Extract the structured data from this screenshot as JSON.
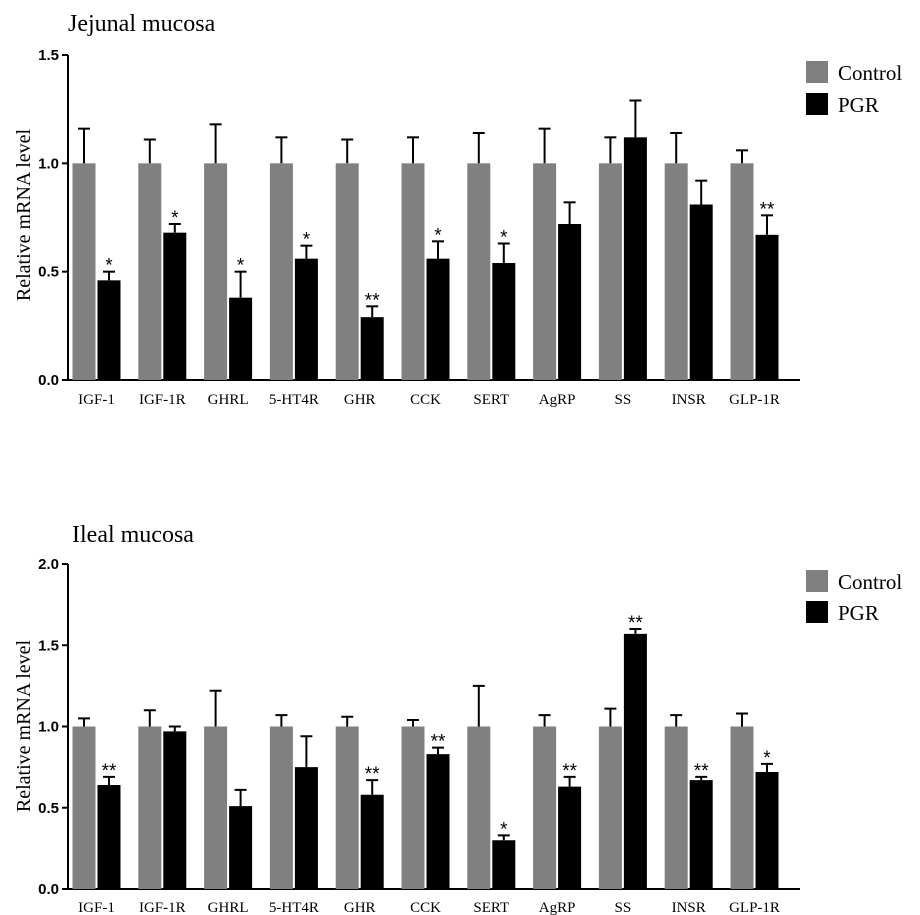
{
  "chart_data": [
    {
      "type": "bar",
      "title": "Jejunal mucosa",
      "ylabel": "Relative mRNA level",
      "xlabel": "",
      "ylim": [
        0,
        1.5
      ],
      "yticks": [
        "0.0",
        "0.5",
        "1.0",
        "1.5"
      ],
      "categories": [
        "IGF-1",
        "IGF-1R",
        "GHRL",
        "5-HT4R",
        "GHR",
        "CCK",
        "SERT",
        "AgRP",
        "SS",
        "INSR",
        "GLP-1R"
      ],
      "series": [
        {
          "name": "Control",
          "color": "#808080",
          "values": [
            1,
            1,
            1,
            1,
            1,
            1,
            1,
            1,
            1,
            1,
            1
          ],
          "errors": [
            0.16,
            0.11,
            0.18,
            0.12,
            0.11,
            0.12,
            0.14,
            0.16,
            0.12,
            0.14,
            0.06
          ]
        },
        {
          "name": "PGR",
          "color": "#000000",
          "values": [
            0.46,
            0.68,
            0.38,
            0.56,
            0.29,
            0.56,
            0.54,
            0.72,
            1.12,
            0.81,
            0.67
          ],
          "errors": [
            0.04,
            0.04,
            0.12,
            0.06,
            0.05,
            0.08,
            0.09,
            0.1,
            0.17,
            0.11,
            0.09
          ]
        }
      ],
      "significance": [
        "*",
        "*",
        "*",
        "*",
        "**",
        "*",
        "*",
        "",
        "",
        "",
        "**"
      ],
      "legend": [
        "Control",
        "PGR"
      ],
      "legend_position": "top-right"
    },
    {
      "type": "bar",
      "title": "Ileal mucosa",
      "ylabel": "Relative mRNA level",
      "xlabel": "",
      "ylim": [
        0,
        2.0
      ],
      "yticks": [
        "0.0",
        "0.5",
        "1.0",
        "1.5",
        "2.0"
      ],
      "categories": [
        "IGF-1",
        "IGF-1R",
        "GHRL",
        "5-HT4R",
        "GHR",
        "CCK",
        "SERT",
        "AgRP",
        "SS",
        "INSR",
        "GLP-1R"
      ],
      "series": [
        {
          "name": "Control",
          "color": "#808080",
          "values": [
            1,
            1,
            1,
            1,
            1,
            1,
            1,
            1,
            1,
            1,
            1
          ],
          "errors": [
            0.05,
            0.1,
            0.22,
            0.07,
            0.06,
            0.04,
            0.25,
            0.07,
            0.11,
            0.07,
            0.08
          ]
        },
        {
          "name": "PGR",
          "color": "#000000",
          "values": [
            0.64,
            0.97,
            0.51,
            0.75,
            0.58,
            0.83,
            0.3,
            0.63,
            1.57,
            0.67,
            0.72
          ],
          "errors": [
            0.05,
            0.03,
            0.1,
            0.19,
            0.09,
            0.04,
            0.03,
            0.06,
            0.03,
            0.02,
            0.05
          ]
        }
      ],
      "significance": [
        "**",
        "",
        "",
        "",
        "**",
        "**",
        "*",
        "**",
        "**",
        "**",
        "*"
      ],
      "legend": [
        "Control",
        "PGR"
      ],
      "legend_position": "top-right"
    }
  ]
}
